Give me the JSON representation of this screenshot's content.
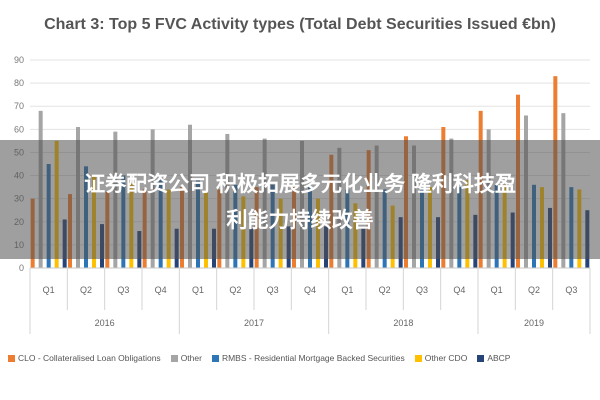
{
  "chart_data": {
    "type": "bar",
    "title": "Chart 3: Top 5 FVC Activity types (Total Debt Securities Issued €bn)",
    "xlabel": "",
    "ylabel": "",
    "ylim": [
      0,
      90
    ],
    "yticks": [
      0,
      10,
      20,
      30,
      40,
      50,
      60,
      70,
      80,
      90
    ],
    "grid": true,
    "legend_position": "bottom",
    "categories": [
      "Q1",
      "Q2",
      "Q3",
      "Q4",
      "Q1",
      "Q2",
      "Q3",
      "Q4",
      "Q1",
      "Q2",
      "Q3",
      "Q4",
      "Q1",
      "Q2",
      "Q3"
    ],
    "groups": [
      {
        "label": "2016",
        "count": 4
      },
      {
        "label": "2017",
        "count": 4
      },
      {
        "label": "2018",
        "count": 4
      },
      {
        "label": "2019",
        "count": 3
      }
    ],
    "series": [
      {
        "name": "CLO - Collateralised Loan Obligations",
        "color": "#ED7D31",
        "values": [
          30,
          32,
          33,
          34,
          35,
          34,
          35,
          36,
          49,
          51,
          57,
          61,
          68,
          75,
          83
        ]
      },
      {
        "name": "Other",
        "color": "#A5A5A5",
        "values": [
          68,
          61,
          59,
          60,
          62,
          58,
          56,
          55,
          52,
          53,
          53,
          56,
          60,
          66,
          67
        ]
      },
      {
        "name": "RMBS - Residential Mortgage Backed Securities",
        "color": "#2E75B6",
        "values": [
          45,
          44,
          40,
          39,
          38,
          36,
          36,
          35,
          34,
          34,
          34,
          35,
          36,
          36,
          35
        ]
      },
      {
        "name": "Other CDO",
        "color": "#FFC000",
        "values": [
          55,
          40,
          37,
          34,
          33,
          31,
          30,
          30,
          28,
          27,
          35,
          38,
          36,
          35,
          34
        ]
      },
      {
        "name": "ABCP",
        "color": "#264478",
        "values": [
          21,
          19,
          16,
          17,
          17,
          17,
          18,
          18,
          17,
          22,
          22,
          23,
          24,
          26,
          25
        ]
      }
    ]
  },
  "overlay": {
    "line1": "证券配资公司 积极拓展多元化业务  隆利科技盈",
    "line2": "利能力持续改善"
  }
}
